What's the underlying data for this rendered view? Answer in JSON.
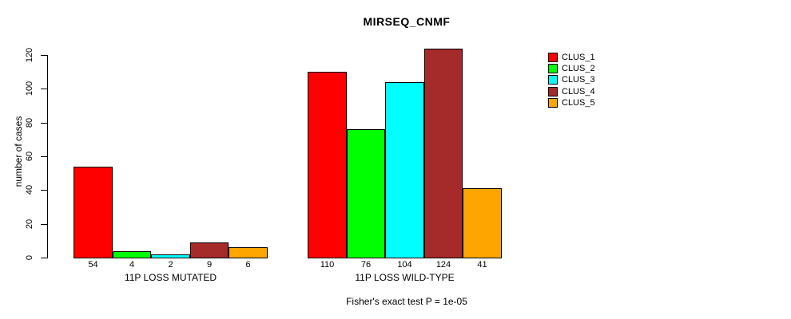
{
  "figure": {
    "title": "MIRSEQ_CNMF",
    "ylabel": "number of cases",
    "footer": "Fisher's exact test P = 1e-05"
  },
  "legend": {
    "items": [
      {
        "label": "CLUS_1",
        "color": "#FF0000"
      },
      {
        "label": "CLUS_2",
        "color": "#00FF00"
      },
      {
        "label": "CLUS_3",
        "color": "#00FFFF"
      },
      {
        "label": "CLUS_4",
        "color": "#A52A2A"
      },
      {
        "label": "CLUS_5",
        "color": "#FFA500"
      }
    ]
  },
  "chart_data": {
    "type": "bar",
    "title": "MIRSEQ_CNMF",
    "xlabel": "",
    "ylabel": "number of cases",
    "ylim": [
      0,
      120
    ],
    "yticks": [
      0,
      20,
      40,
      60,
      80,
      100,
      120
    ],
    "grid": false,
    "legend_position": "right",
    "bar_value_labels_shown": true,
    "annotation": "Fisher's exact test P = 1e-05",
    "series_names": [
      "CLUS_1",
      "CLUS_2",
      "CLUS_3",
      "CLUS_4",
      "CLUS_5"
    ],
    "series_colors": [
      "#FF0000",
      "#00FF00",
      "#00FFFF",
      "#A52A2A",
      "#FFA500"
    ],
    "groups": [
      {
        "label": "11P LOSS MUTATED",
        "values": [
          54,
          4,
          2,
          9,
          6
        ]
      },
      {
        "label": "11P LOSS WILD-TYPE",
        "values": [
          110,
          76,
          104,
          124,
          41
        ]
      }
    ]
  }
}
